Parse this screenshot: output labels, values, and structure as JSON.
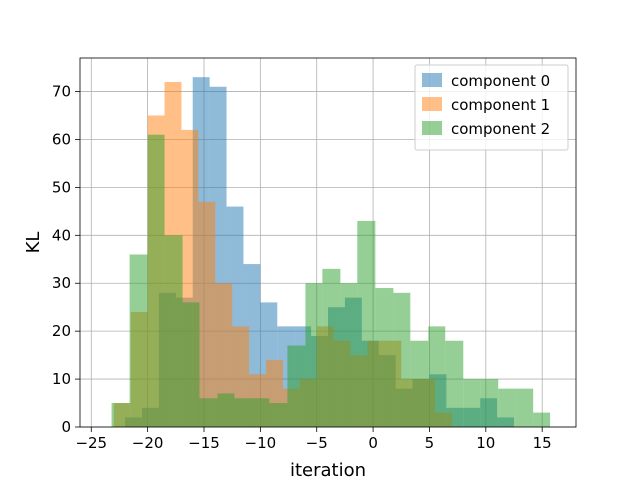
{
  "chart_data": {
    "type": "bar",
    "subtype": "overlaid-histogram",
    "xlabel": "iteration",
    "ylabel": "KL",
    "xlim": [
      -26,
      18
    ],
    "ylim": [
      0,
      77
    ],
    "xticks": [
      -25,
      -20,
      -15,
      -10,
      -5,
      0,
      5,
      10,
      15
    ],
    "yticks": [
      0,
      10,
      20,
      30,
      40,
      50,
      60,
      70
    ],
    "grid": true,
    "legend_position": "top-right",
    "bar_alpha": 0.5,
    "series": [
      {
        "name": "component 0",
        "color": "#1f77b4",
        "bin_edges": [
          -22.0,
          -20.5,
          -19.0,
          -17.5,
          -16.0,
          -14.5,
          -13.0,
          -11.5,
          -10.0,
          -8.5,
          -7.0,
          -5.5,
          -4.0,
          -2.5,
          -1.0,
          0.5,
          2.0,
          3.5,
          5.0,
          6.5,
          8.0,
          9.5,
          11.0,
          12.5
        ],
        "values": [
          2,
          4,
          28,
          27,
          73,
          71,
          46,
          34,
          26,
          21,
          21,
          19,
          25,
          27,
          18,
          15,
          8,
          10,
          11,
          4,
          4,
          6,
          2
        ]
      },
      {
        "name": "component 1",
        "color": "#ff7f0e",
        "bin_edges": [
          -23.0,
          -21.5,
          -20.0,
          -18.5,
          -17.0,
          -15.5,
          -14.0,
          -12.5,
          -11.0,
          -9.5,
          -8.0,
          -6.5,
          -5.0,
          -3.5,
          -2.0,
          -0.5,
          1.0,
          2.5,
          4.0,
          5.5,
          7.0
        ],
        "values": [
          5,
          24,
          65,
          72,
          62,
          47,
          30,
          21,
          11,
          14,
          8,
          10,
          21,
          18,
          15,
          18,
          18,
          10,
          10,
          3
        ]
      },
      {
        "name": "component 2",
        "color": "#2ca02c",
        "bin_edges": [
          -23.2,
          -21.6,
          -20.0,
          -18.5,
          -16.9,
          -15.4,
          -13.8,
          -12.3,
          -10.7,
          -9.2,
          -7.6,
          -6.0,
          -4.5,
          -2.9,
          -1.4,
          0.2,
          1.8,
          3.3,
          4.9,
          6.4,
          8.0,
          9.5,
          11.1,
          12.6,
          14.2,
          15.7
        ],
        "values": [
          5,
          36,
          61,
          40,
          26,
          6,
          7,
          6,
          6,
          5,
          17,
          30,
          33,
          30,
          43,
          29,
          28,
          18,
          21,
          18,
          10,
          10,
          8,
          8,
          3
        ]
      }
    ]
  }
}
